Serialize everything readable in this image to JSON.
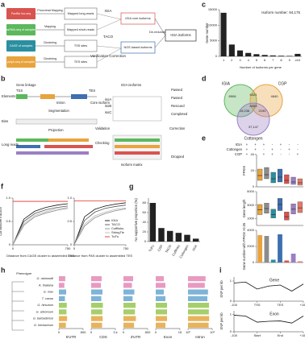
{
  "panel_labels": [
    "a",
    "b",
    "c",
    "d",
    "e",
    "f",
    "g",
    "h",
    "i"
  ],
  "a": {
    "sources": [
      {
        "text": "PacBio Iso-seq",
        "color": "#d9534f"
      },
      {
        "text": "ssRNA-seq of samples",
        "color": "#5cb85c"
      },
      {
        "text": "CAGE of samples",
        "color": "#2a8fa0"
      },
      {
        "text": "polyA-seq of samples",
        "color": "#e8a33d"
      }
    ],
    "steps": [
      "Proovread Mapping",
      "Mapping",
      "Clustering",
      "Clustering"
    ],
    "products": [
      "Mapped long-reads",
      "Mapped short-reads",
      "TSS sites",
      "TES sites"
    ],
    "methods": [
      "IGIA",
      "TACO",
      "Verification Correction"
    ],
    "outputs": [
      "IGIA core isoforms",
      "NGS based isoforms"
    ],
    "merge": "De-redundancy",
    "final": "IGIA isoforms"
  },
  "b": {
    "texts": [
      "Gene linkage",
      "TSS",
      "TES",
      "Elements",
      "Intron",
      "Segmentation",
      "Bins",
      "Projection",
      "Long reads",
      "Checking",
      "Core isoform",
      "IGIA isoforms",
      "isoA",
      "isoB",
      "isoC",
      "Validation",
      "Correction",
      "Isoform matrix",
      "Passed",
      "Passed",
      "Rescued",
      "Completed",
      "Dropped"
    ]
  },
  "d": {
    "sets": [
      "IGIA",
      "CGP",
      "Cottongen"
    ],
    "regions": [
      "8906",
      "4840",
      "37,147",
      "6321",
      "15,236",
      "2190",
      "8453"
    ]
  },
  "e": {
    "rows": [
      "IGIA",
      "Cottongen",
      "CGP"
    ],
    "matrix": [
      [
        "+",
        "+",
        "+",
        "-",
        "+",
        "-",
        "-"
      ],
      [
        "+",
        "+",
        "-",
        "+",
        "-",
        "+",
        "-"
      ],
      [
        "+",
        "-",
        "+",
        "+",
        "-",
        "-",
        "+"
      ]
    ]
  },
  "h": {
    "tree_label": "Phenotype"
  },
  "i": {
    "titles": [
      "Gene",
      "Exon"
    ]
  },
  "chart_data": [
    {
      "type": "bar",
      "title": "Isoform number: 94,175",
      "categories": [
        "1",
        "2",
        "3",
        "4",
        "5",
        "6",
        "7",
        "8",
        "9",
        "≥10"
      ],
      "values": [
        14000,
        3800,
        1900,
        1100,
        700,
        450,
        300,
        200,
        150,
        800
      ],
      "color": "#222222",
      "ylim": [
        0,
        15000
      ],
      "yticks": [
        0,
        5000,
        10000,
        15000
      ],
      "xlabel": "Number of isoforms per gene",
      "ylabel": "Gene number"
    },
    {
      "type": "line",
      "x": [
        0,
        150,
        300,
        450,
        600,
        750
      ],
      "series": [
        {
          "name": "IGIA",
          "color": "#111111",
          "values": [
            0,
            0.55,
            0.72,
            0.8,
            0.85,
            0.88
          ]
        },
        {
          "name": "TACO",
          "color": "#555555",
          "values": [
            0,
            0.5,
            0.67,
            0.75,
            0.8,
            0.83
          ]
        },
        {
          "name": "Cufflinks",
          "color": "#888888",
          "values": [
            0,
            0.42,
            0.6,
            0.68,
            0.74,
            0.78
          ]
        },
        {
          "name": "StringTie",
          "color": "#bbbbbb",
          "values": [
            0,
            0.45,
            0.63,
            0.71,
            0.77,
            0.8
          ]
        },
        {
          "name": "TuFu",
          "color": "#e0302a",
          "values": [
            0.93,
            0.93,
            0.93,
            0.93,
            0.93,
            0.93
          ]
        }
      ],
      "xlim": [
        0,
        750
      ],
      "xticks": [
        0,
        750
      ],
      "ylim": [
        0,
        1
      ],
      "yticks": [
        0,
        0.5,
        {
          "value": 1,
          "label": "1.0"
        }
      ],
      "xlabel": "Distance from CAGE cluster to assembled TSS",
      "ylabel": "Cumulative fraction"
    },
    {
      "type": "line",
      "x": [
        0,
        150,
        300,
        450,
        600,
        750
      ],
      "series": [
        {
          "name": "IGIA",
          "color": "#111111",
          "values": [
            0,
            0.6,
            0.76,
            0.83,
            0.87,
            0.9
          ]
        },
        {
          "name": "TACO",
          "color": "#555555",
          "values": [
            0,
            0.52,
            0.7,
            0.78,
            0.82,
            0.85
          ]
        },
        {
          "name": "Cufflinks",
          "color": "#888888",
          "values": [
            0,
            0.4,
            0.58,
            0.67,
            0.73,
            0.77
          ]
        },
        {
          "name": "StringTie",
          "color": "#bbbbbb",
          "values": [
            0,
            0.44,
            0.62,
            0.7,
            0.76,
            0.79
          ]
        },
        {
          "name": "TuFu",
          "color": "#e0302a",
          "values": [
            0.94,
            0.94,
            0.94,
            0.94,
            0.94,
            0.94
          ]
        }
      ],
      "xlim": [
        0,
        750
      ],
      "xticks": [
        0,
        750
      ],
      "ylim": [
        0,
        1
      ],
      "yticks": [
        0,
        0.5,
        {
          "value": 1,
          "label": "1.0"
        }
      ],
      "xlabel": "Distance from PAS cluster to assembled TES",
      "legend": "lower right"
    },
    {
      "type": "bar",
      "categories": [
        "TuFu",
        "CGP",
        "TACO",
        "Cufflinks",
        "Cottongen",
        "IGIA"
      ],
      "values": [
        80,
        28,
        22,
        18,
        14,
        6
      ],
      "color": "#222222",
      "ylim": [
        0,
        90
      ],
      "yticks": [
        0,
        20,
        40,
        60,
        80
      ],
      "ylabel": "No supportive proportion (%)"
    },
    {
      "type": "box",
      "categories": [
        null,
        null,
        null,
        null,
        null,
        null,
        null
      ],
      "colors": [
        "#e8a33d",
        "#8c8c8c",
        "#2a8fa0",
        "#3e6fb0",
        "#d9534f",
        "#9b7fc4",
        "#e07b6a"
      ],
      "q1": [
        8,
        10,
        5,
        6,
        4,
        3,
        2
      ],
      "median": [
        14,
        15,
        10,
        12,
        8,
        6,
        5
      ],
      "q3": [
        22,
        24,
        18,
        22,
        15,
        12,
        10
      ],
      "ylim": [
        0,
        40
      ],
      "yticks": [
        0,
        20,
        40
      ],
      "ylabel": "FPKM"
    },
    {
      "type": "box",
      "categories": [
        null,
        null,
        null,
        null,
        null,
        null,
        null
      ],
      "colors": [
        "#e8a33d",
        "#8c8c8c",
        "#2a8fa0",
        "#3e6fb0",
        "#d9534f",
        "#9b7fc4",
        "#e07b6a"
      ],
      "q1": [
        1600,
        1800,
        1100,
        2200,
        800,
        1700,
        1900
      ],
      "median": [
        2300,
        2500,
        1600,
        3100,
        1300,
        2400,
        2600
      ],
      "q3": [
        3100,
        3300,
        2400,
        4000,
        2000,
        3200,
        3500
      ],
      "ylim": [
        0,
        5000
      ],
      "yticks": [
        1000,
        3000,
        5000
      ],
      "ylabel": "Gene length"
    },
    {
      "type": "bar",
      "categories": [
        null,
        null,
        null,
        null,
        null,
        null,
        null
      ],
      "colors": [
        "#e8a33d",
        "#8c8c8c",
        "#2a8fa0",
        "#3e6fb0",
        "#d9534f",
        "#9b7fc4",
        "#e07b6a"
      ],
      "values": [
        3400,
        3300,
        350,
        3500,
        250,
        1100,
        150
      ],
      "ylim": [
        0,
        4000
      ],
      "yticks": [
        0,
        2000,
        4000
      ],
      "ylabel": "Gene number with FPKM >0.05"
    },
    {
      "type": "facets",
      "categories": [
        "G. raimondii",
        "A. thaliana",
        "G. max",
        "T. cacao",
        "G. hirsutum",
        "G. arboreum",
        "G. barbadense",
        "G. herbaceum"
      ],
      "colors": [
        "#e89ac0",
        "#e89ac0",
        "#7fb3d8",
        "#7fb3d8",
        "#a6cf6b",
        "#a6cf6b",
        "#e8b35c",
        "#e8b35c"
      ],
      "facets": [
        {
          "name": "5'UTR",
          "values": [
            210,
            180,
            240,
            200,
            260,
            250,
            270,
            230
          ],
          "xlim": [
            0,
            800
          ],
          "xticks": [
            0,
            800
          ]
        },
        {
          "name": "CDS",
          "values": [
            1300,
            1200,
            1400,
            1250,
            1450,
            1380,
            1420,
            1350
          ],
          "xlim": [
            0,
            3000
          ],
          "xticks": [
            0,
            {
              "value": 3000,
              "label": "3 k"
            }
          ]
        },
        {
          "name": "3'UTR",
          "values": [
            320,
            280,
            360,
            300,
            400,
            380,
            410,
            350
          ],
          "xlim": [
            0,
            800
          ],
          "xticks": [
            0,
            800
          ]
        },
        {
          "name": "Exon",
          "values": [
            5,
            6,
            5,
            6,
            7,
            7,
            7,
            6
          ],
          "xlim": [
            0,
            15
          ],
          "xticks": [
            0,
            15
          ]
        },
        {
          "name": "Intron",
          "values": [
            150,
            120,
            300,
            250,
            400,
            380,
            420,
            360
          ],
          "xlim": [
            1,
            1000
          ],
          "log": true,
          "xticks": [
            {
              "value": 1,
              "label": "10⁰"
            },
            {
              "value": 1000,
              "label": "10³"
            }
          ]
        }
      ]
    },
    {
      "type": "line",
      "x": [
        -100,
        -50,
        0,
        50,
        100,
        150,
        200
      ],
      "series": [
        {
          "name": null,
          "color": "#111111",
          "values": [
            0.9,
            0.95,
            0.6,
            0.75,
            0.8,
            0.5,
            0.85
          ]
        }
      ],
      "xlim": [
        -100,
        200
      ],
      "xticks": [
        -100,
        {
          "value": 0,
          "label": "TSS"
        },
        {
          "value": 100,
          "label": "TES"
        },
        {
          "value": 200,
          "label": "+100"
        }
      ],
      "ylim": [
        0,
        1.2
      ],
      "yticks": [
        0,
        1
      ],
      "ylabel": "SNP per kb"
    },
    {
      "type": "line",
      "x": [
        -100,
        -50,
        0,
        50,
        100,
        150,
        200
      ],
      "series": [
        {
          "name": null,
          "color": "#111111",
          "values": [
            0.95,
            0.9,
            0.55,
            0.6,
            0.62,
            0.5,
            0.9
          ]
        }
      ],
      "xlim": [
        -100,
        200
      ],
      "xticks": [
        -100,
        {
          "value": 0,
          "label": "Start"
        },
        {
          "value": 100,
          "label": "End"
        },
        {
          "value": 200,
          "label": "+100"
        }
      ],
      "ylim": [
        0,
        1.2
      ],
      "yticks": [
        0,
        1
      ],
      "ylabel": "SNP per kb"
    }
  ]
}
